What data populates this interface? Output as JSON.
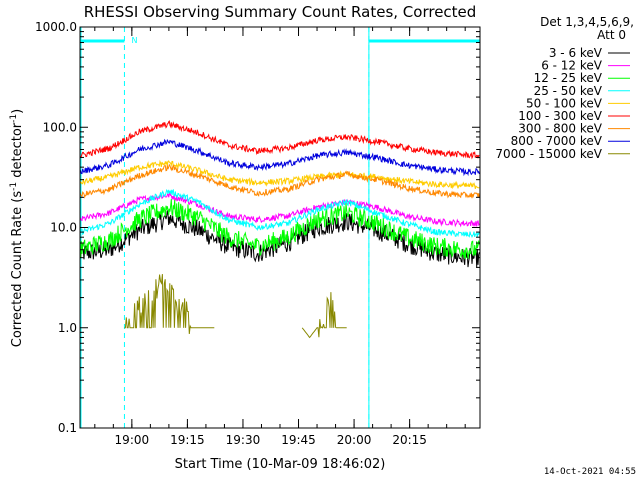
{
  "chart_data": {
    "type": "line",
    "title": "RHESSI Observing Summary Count Rates, Corrected",
    "xlabel": "Start Time (10-Mar-09 18:46:02)",
    "ylabel_main": "Corrected Count Rate (s",
    "ylabel_sup1": "-1",
    "ylabel_mid": " detector",
    "ylabel_sup2": "-1",
    "ylabel_end": ")",
    "y_scale": "log",
    "ylim": [
      0.1,
      1000
    ],
    "y_ticks": [
      0.1,
      1,
      10,
      100,
      1000
    ],
    "y_tick_labels": [
      "0.1",
      "1.0",
      "10.0",
      "100.0",
      "1000.0"
    ],
    "xlim_min": [
      0,
      108
    ],
    "x_ticks_min": [
      14,
      29,
      44,
      59,
      74,
      89
    ],
    "x_tick_labels": [
      "19:00",
      "19:15",
      "19:30",
      "19:45",
      "20:00",
      "20:15"
    ],
    "legend_title_1": "Det 1,3,4,5,6,9,",
    "legend_title_2": "Att 0",
    "legend_placement": "right",
    "night_marker_label": "N",
    "night_intervals_min": [
      [
        0,
        12
      ],
      [
        78,
        108
      ]
    ],
    "vertical_dashed_min": [
      12,
      78,
      108
    ],
    "series": [
      {
        "name": "3 - 6 keV",
        "color": "#000000",
        "x_min": [
          0,
          8,
          16,
          24,
          32,
          40,
          48,
          56,
          64,
          72,
          80,
          88,
          96,
          104,
          108
        ],
        "values": [
          5.5,
          6,
          9.5,
          12.5,
          9.5,
          6.5,
          5.5,
          7,
          10,
          11.5,
          9.5,
          7,
          5.5,
          5,
          5
        ]
      },
      {
        "name": "6 - 12 keV",
        "color": "#ff00ff",
        "x_min": [
          0,
          8,
          16,
          24,
          32,
          40,
          48,
          56,
          64,
          72,
          80,
          88,
          96,
          104,
          108
        ],
        "values": [
          12,
          14,
          19,
          21,
          17,
          13,
          12,
          13,
          16,
          18,
          16,
          13,
          11.5,
          11,
          11
        ]
      },
      {
        "name": "12 - 25 keV",
        "color": "#00ff00",
        "x_min": [
          0,
          8,
          16,
          24,
          32,
          40,
          48,
          56,
          64,
          72,
          80,
          88,
          96,
          104,
          108
        ],
        "values": [
          6,
          7.5,
          12,
          16,
          12.5,
          8,
          6.5,
          8,
          12,
          14,
          11,
          8,
          6.5,
          6,
          6
        ]
      },
      {
        "name": "25 - 50 keV",
        "color": "#00ffff",
        "x_min": [
          0,
          8,
          16,
          24,
          32,
          40,
          48,
          56,
          64,
          72,
          80,
          88,
          96,
          104,
          108
        ],
        "values": [
          9,
          11,
          17,
          23,
          18,
          12,
          10,
          11,
          15,
          18,
          14,
          11,
          9,
          8.5,
          8.5
        ]
      },
      {
        "name": "50 - 100 keV",
        "color": "#ffcc00",
        "x_min": [
          0,
          8,
          16,
          24,
          32,
          40,
          48,
          56,
          64,
          72,
          80,
          88,
          96,
          104,
          108
        ],
        "values": [
          28,
          32,
          40,
          44,
          37,
          30,
          28,
          29,
          32,
          34,
          32,
          29,
          27,
          26,
          26
        ]
      },
      {
        "name": "100 - 300 keV",
        "color": "#ff0000",
        "x_min": [
          0,
          8,
          16,
          24,
          32,
          40,
          48,
          56,
          64,
          72,
          80,
          88,
          96,
          104,
          108
        ],
        "values": [
          52,
          62,
          90,
          108,
          88,
          66,
          58,
          62,
          74,
          80,
          72,
          62,
          56,
          53,
          52
        ]
      },
      {
        "name": "300 - 800 keV",
        "color": "#ff8800",
        "x_min": [
          0,
          8,
          16,
          24,
          32,
          40,
          48,
          56,
          64,
          72,
          80,
          88,
          96,
          104,
          108
        ],
        "values": [
          21,
          24,
          33,
          40,
          33,
          26,
          22,
          24,
          30,
          34,
          30,
          25,
          22,
          21,
          21
        ]
      },
      {
        "name": "800 - 7000 keV",
        "color": "#0000dd",
        "x_min": [
          0,
          8,
          16,
          24,
          32,
          40,
          48,
          56,
          64,
          72,
          80,
          88,
          96,
          104,
          108
        ],
        "values": [
          36,
          42,
          60,
          72,
          58,
          44,
          40,
          43,
          52,
          56,
          50,
          42,
          38,
          36,
          36
        ]
      },
      {
        "name": "7000 - 15000 keV",
        "color": "#888800",
        "x_min": [
          12,
          14,
          16,
          18,
          20,
          22,
          24,
          26,
          28,
          30,
          32,
          34,
          36,
          60,
          62,
          64,
          66,
          68,
          70,
          72
        ],
        "values": [
          1,
          2,
          2,
          2,
          2.5,
          3,
          2.5,
          2,
          2,
          1,
          1,
          1,
          1,
          1,
          0.8,
          1,
          1.5,
          2,
          1,
          1
        ]
      }
    ]
  },
  "footer": {
    "timestamp": "14-Oct-2021 04:55"
  }
}
